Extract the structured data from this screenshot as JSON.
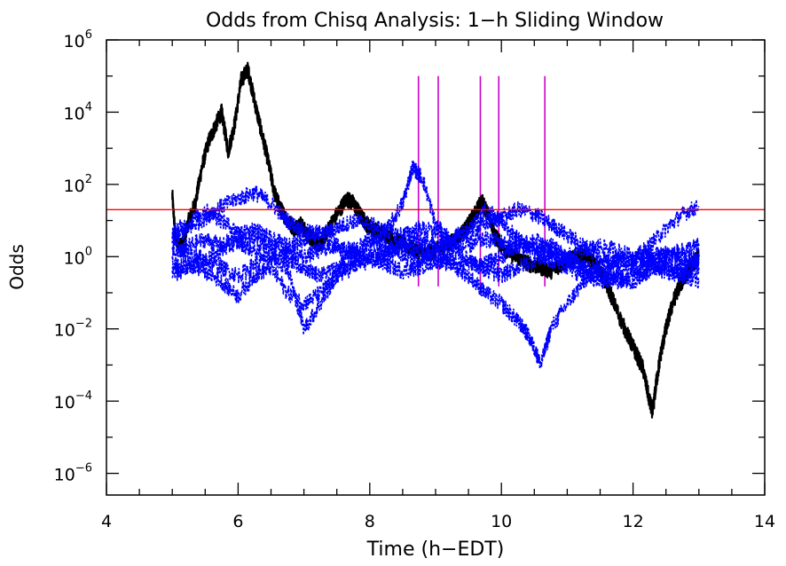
{
  "chart_data": {
    "type": "line",
    "title": "Odds from Chisq Analysis: 1−h Sliding Window",
    "xlabel": "Time (h−EDT)",
    "ylabel": "Odds",
    "xlim": [
      4,
      14
    ],
    "ylim_log10": [
      -6.6,
      6.0
    ],
    "y_scale": "log",
    "grid": false,
    "x_ticks": [
      "4",
      "6",
      "8",
      "10",
      "12",
      "14"
    ],
    "x_tick_values": [
      4,
      6,
      8,
      10,
      12,
      14
    ],
    "y_ticks": [
      {
        "base": "10",
        "exp": "-6",
        "log10": -6
      },
      {
        "base": "10",
        "exp": "-4",
        "log10": -4
      },
      {
        "base": "10",
        "exp": "-2",
        "log10": -2
      },
      {
        "base": "10",
        "exp": "0",
        "log10": 0
      },
      {
        "base": "10",
        "exp": "2",
        "log10": 2
      },
      {
        "base": "10",
        "exp": "4",
        "log10": 4
      },
      {
        "base": "10",
        "exp": "6",
        "log10": 6
      }
    ],
    "threshold": {
      "value": 20,
      "color": "#ff0000"
    },
    "markers": {
      "x": [
        8.74,
        9.04,
        9.68,
        9.96,
        10.66
      ],
      "y_range": [
        0.15,
        100000
      ],
      "color": "#cc00cc"
    },
    "series": [
      {
        "color": "#000000",
        "line": "solid",
        "x": [
          5.0,
          5.05,
          5.15,
          5.25,
          5.35,
          5.45,
          5.55,
          5.65,
          5.75,
          5.85,
          5.95,
          6.05,
          6.15,
          6.25,
          6.35,
          6.45,
          6.55,
          6.65,
          6.75,
          6.85,
          6.95,
          7.05,
          7.15,
          7.25,
          7.35,
          7.5,
          7.65,
          7.75,
          7.85,
          7.95,
          8.1,
          8.25,
          8.4,
          8.55,
          8.7,
          8.85,
          9.0,
          9.15,
          9.3,
          9.45,
          9.6,
          9.7,
          9.8,
          9.9,
          10.0,
          10.15,
          10.3,
          10.45,
          10.6,
          10.75,
          10.9,
          11.05,
          11.2,
          11.35,
          11.5,
          11.65,
          11.8,
          11.95,
          12.05,
          12.15,
          12.25,
          12.3,
          12.35,
          12.42,
          12.5,
          12.6,
          12.7,
          12.8,
          12.9,
          13.0
        ],
        "y": [
          50,
          3,
          2,
          10,
          30,
          300,
          1500,
          4000,
          10000,
          800,
          5000,
          80000,
          150000,
          20000,
          3000,
          500,
          60,
          20,
          10,
          6,
          8,
          4,
          3,
          2,
          5,
          15,
          40,
          30,
          15,
          8,
          5,
          4,
          3,
          2,
          1.5,
          1.2,
          1.5,
          2,
          3,
          6,
          15,
          35,
          15,
          4,
          2,
          1.2,
          0.8,
          0.6,
          0.5,
          0.4,
          0.6,
          0.8,
          1.2,
          0.8,
          0.4,
          0.1,
          0.02,
          0.005,
          0.002,
          0.0008,
          0.0001,
          5e-05,
          0.0003,
          0.002,
          0.01,
          0.05,
          0.15,
          0.3,
          0.6,
          1.0
        ]
      },
      {
        "color": "#0000ff",
        "line": "dashed",
        "x": [
          5.0,
          5.25,
          5.5,
          5.75,
          6.0,
          6.25,
          6.5,
          6.75,
          7.0,
          7.25,
          7.5,
          7.75,
          8.0,
          8.25,
          8.5,
          8.75,
          9.0,
          9.25,
          9.5,
          9.75,
          10.0,
          10.25,
          10.5,
          10.75,
          11.0,
          11.25,
          11.5,
          11.75,
          12.0,
          12.25,
          12.5,
          12.75,
          13.0
        ],
        "y": [
          3,
          6,
          12,
          25,
          40,
          60,
          30,
          10,
          5,
          4,
          6,
          10,
          8,
          5,
          4,
          6,
          5,
          3,
          4,
          8,
          12,
          20,
          15,
          8,
          4,
          2,
          1,
          0.7,
          0.8,
          2,
          6,
          15,
          25
        ]
      },
      {
        "color": "#0000ff",
        "line": "dashed",
        "x": [
          5.0,
          5.25,
          5.5,
          5.75,
          6.0,
          6.25,
          6.5,
          6.75,
          7.0,
          7.25,
          7.5,
          7.75,
          8.0,
          8.25,
          8.5,
          8.65,
          8.8,
          9.0,
          9.25,
          9.5,
          9.75,
          10.0,
          10.25,
          10.5,
          10.75,
          11.0,
          11.25,
          11.5,
          11.75,
          12.0,
          12.25,
          12.5,
          12.75,
          13.0
        ],
        "y": [
          2,
          1.2,
          0.8,
          1.5,
          2.5,
          1.5,
          1,
          0.5,
          0.01,
          0.05,
          0.3,
          0.8,
          2,
          5,
          30,
          300,
          150,
          8,
          2,
          0.8,
          0.4,
          0.3,
          0.5,
          0.8,
          1.2,
          0.8,
          0.5,
          0.3,
          0.2,
          0.3,
          0.5,
          0.4,
          0.3,
          0.5
        ]
      },
      {
        "color": "#0000ff",
        "line": "dashed",
        "x": [
          5.0,
          5.25,
          5.5,
          5.75,
          6.0,
          6.25,
          6.5,
          6.75,
          7.0,
          7.25,
          7.5,
          7.75,
          8.0,
          8.25,
          8.5,
          8.75,
          9.0,
          9.25,
          9.5,
          9.75,
          10.0,
          10.2,
          10.35,
          10.5,
          10.6,
          10.75,
          11.0,
          11.25,
          11.5,
          11.75,
          12.0,
          12.25,
          12.5,
          12.75,
          13.0
        ],
        "y": [
          0.5,
          0.6,
          0.4,
          0.2,
          0.08,
          0.3,
          0.5,
          0.1,
          0.05,
          0.1,
          0.3,
          0.5,
          0.8,
          0.6,
          0.4,
          0.5,
          0.8,
          0.6,
          0.3,
          0.1,
          0.05,
          0.02,
          0.01,
          0.003,
          0.001,
          0.01,
          0.05,
          0.2,
          0.5,
          0.3,
          0.2,
          0.4,
          0.6,
          0.3,
          0.2
        ]
      },
      {
        "color": "#0000ff",
        "line": "dashed",
        "x": [
          5.0,
          5.25,
          5.5,
          5.75,
          6.0,
          6.25,
          6.5,
          6.75,
          7.0,
          7.25,
          7.5,
          7.75,
          8.0,
          8.25,
          8.5,
          8.75,
          9.0,
          9.25,
          9.5,
          9.75,
          10.0,
          10.25,
          10.5,
          10.75,
          11.0,
          11.25,
          11.5,
          11.75,
          12.0,
          12.25,
          12.5,
          12.75,
          13.0
        ],
        "y": [
          5,
          8,
          20,
          10,
          5,
          3,
          2,
          1.5,
          1,
          1.5,
          2,
          1.5,
          1,
          1.5,
          2,
          3,
          2,
          1.5,
          2,
          3,
          2.5,
          2,
          1.5,
          2,
          1,
          1.5,
          2,
          1.5,
          1,
          1.2,
          1,
          1.5,
          2
        ]
      },
      {
        "color": "#0000ff",
        "line": "dashed",
        "x": [
          5.0,
          5.25,
          5.5,
          5.75,
          6.0,
          6.25,
          6.5,
          6.75,
          7.0,
          7.25,
          7.5,
          7.75,
          8.0,
          8.25,
          8.5,
          8.75,
          9.0,
          9.25,
          9.5,
          9.75,
          10.0,
          10.25,
          10.5,
          10.75,
          11.0,
          11.25,
          11.5,
          11.75,
          12.0,
          12.25,
          12.5,
          12.75,
          13.0
        ],
        "y": [
          1,
          2,
          3,
          2,
          4,
          6,
          3,
          2,
          3,
          5,
          2,
          1,
          0.8,
          1.2,
          2,
          1.5,
          1,
          0.8,
          0.7,
          0.6,
          1,
          2,
          3,
          1.5,
          0.8,
          0.5,
          0.6,
          0.8,
          1,
          0.8,
          0.6,
          0.5,
          0.8
        ]
      },
      {
        "color": "#0000ff",
        "line": "dashed",
        "x": [
          5.0,
          5.25,
          5.5,
          5.75,
          6.0,
          6.25,
          6.5,
          6.75,
          7.0,
          7.25,
          7.5,
          7.75,
          8.0,
          8.25,
          8.5,
          8.75,
          9.0,
          9.25,
          9.5,
          9.75,
          10.0,
          10.25,
          10.5,
          10.75,
          11.0,
          11.25,
          11.5,
          11.75,
          12.0,
          12.25,
          12.5,
          12.75,
          13.0
        ],
        "y": [
          0.3,
          0.5,
          0.8,
          0.5,
          0.3,
          0.6,
          1,
          0.8,
          0.5,
          0.3,
          0.5,
          1.5,
          3,
          2,
          1,
          0.8,
          1.5,
          3,
          6,
          20,
          10,
          3,
          1.5,
          0.8,
          0.5,
          0.3,
          0.2,
          0.3,
          0.5,
          0.8,
          1.2,
          1,
          0.8
        ]
      }
    ]
  }
}
